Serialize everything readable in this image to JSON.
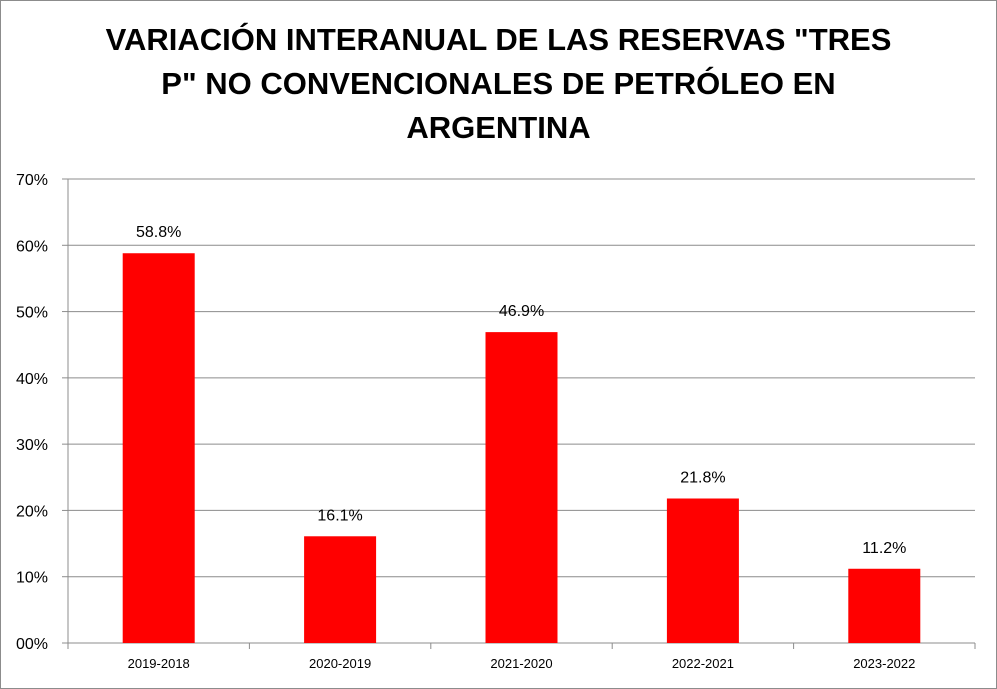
{
  "chart_data": {
    "type": "bar",
    "title_lines": [
      "VARIACIÓN INTERANUAL DE LAS RESERVAS \"TRES",
      "P\" NO CONVENCIONALES DE PETRÓLEO EN",
      "ARGENTINA"
    ],
    "categories": [
      "2019-2018",
      "2020-2019",
      "2021-2020",
      "2022-2021",
      "2023-2022"
    ],
    "values": [
      58.8,
      16.1,
      46.9,
      21.8,
      11.2
    ],
    "data_labels": [
      "58.8%",
      "16.1%",
      "46.9%",
      "21.8%",
      "11.2%"
    ],
    "y_ticks": [
      0,
      10,
      20,
      30,
      40,
      50,
      60,
      70
    ],
    "y_tick_labels": [
      "00%",
      "10%",
      "20%",
      "30%",
      "40%",
      "50%",
      "60%",
      "70%"
    ],
    "ylim": [
      0,
      70
    ],
    "xlabel": "",
    "ylabel": "",
    "grid": true,
    "legend": "none",
    "bar_color": "#ff0000"
  }
}
